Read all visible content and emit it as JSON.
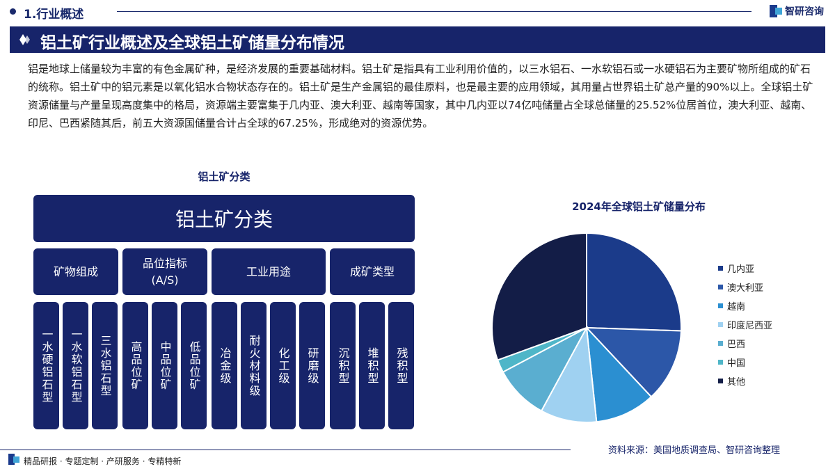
{
  "section": {
    "title": "1.行业概述"
  },
  "brand": {
    "name": "智研咨询"
  },
  "banner": {
    "title": "铝土矿行业概述及全球铝土矿储量分布情况"
  },
  "intro": "铝是地球上储量较为丰富的有色金属矿种，是经济发展的重要基础材料。铝土矿是指具有工业利用价值的，以三水铝石、一水软铝石或一水硬铝石为主要矿物所组成的矿石的统称。铝土矿中的铝元素是以氧化铝水合物状态存在的。铝土矿是生产金属铝的最佳原料，也是最主要的应用领域，其用量占世界铝土矿总产量的90%以上。全球铝土矿资源储量与产量呈现高度集中的格局，资源端主要富集于几内亚、澳大利亚、越南等国家，其中几内亚以74亿吨储量占全球总储量的25.52%位居首位，澳大利亚、越南、印尼、巴西紧随其后，前五大资源国储量合计占全球的67.25%，形成绝对的资源优势。",
  "classification": {
    "title": "铝土矿分类",
    "root": "铝土矿分类",
    "categories": [
      {
        "label": "矿物组成",
        "items": [
          "一水硬铝石型",
          "一水软铝石型",
          "三水铝石型"
        ]
      },
      {
        "label": "品位指标\n(A/S)",
        "items": [
          "高品位矿",
          "中品位矿",
          "低品位矿"
        ]
      },
      {
        "label": "工业用途",
        "items": [
          "冶金级",
          "耐火材料级",
          "化工级",
          "研磨级"
        ]
      },
      {
        "label": "成矿类型",
        "items": [
          "沉积型",
          "堆积型",
          "残积型"
        ]
      }
    ]
  },
  "chart_data": {
    "type": "pie",
    "title": "2024年全球铝土矿储量分布",
    "series": [
      {
        "name": "几内亚",
        "value": 25.52,
        "color": "#1b3b8a"
      },
      {
        "name": "澳大利亚",
        "value": 12.5,
        "color": "#2c57a8"
      },
      {
        "name": "越南",
        "value": 10.3,
        "color": "#2b8fd1"
      },
      {
        "name": "印度尼西亚",
        "value": 9.6,
        "color": "#9fd1f1"
      },
      {
        "name": "巴西",
        "value": 9.33,
        "color": "#5aaed0"
      },
      {
        "name": "中国",
        "value": 2.2,
        "color": "#4fb6c8"
      },
      {
        "name": "其他",
        "value": 30.55,
        "color": "#131d47"
      }
    ],
    "legend_position": "right"
  },
  "source": "资料来源：美国地质调查局、智研咨询整理",
  "footer": "精品研报 · 专题定制 · 产研服务 · 专精特新"
}
